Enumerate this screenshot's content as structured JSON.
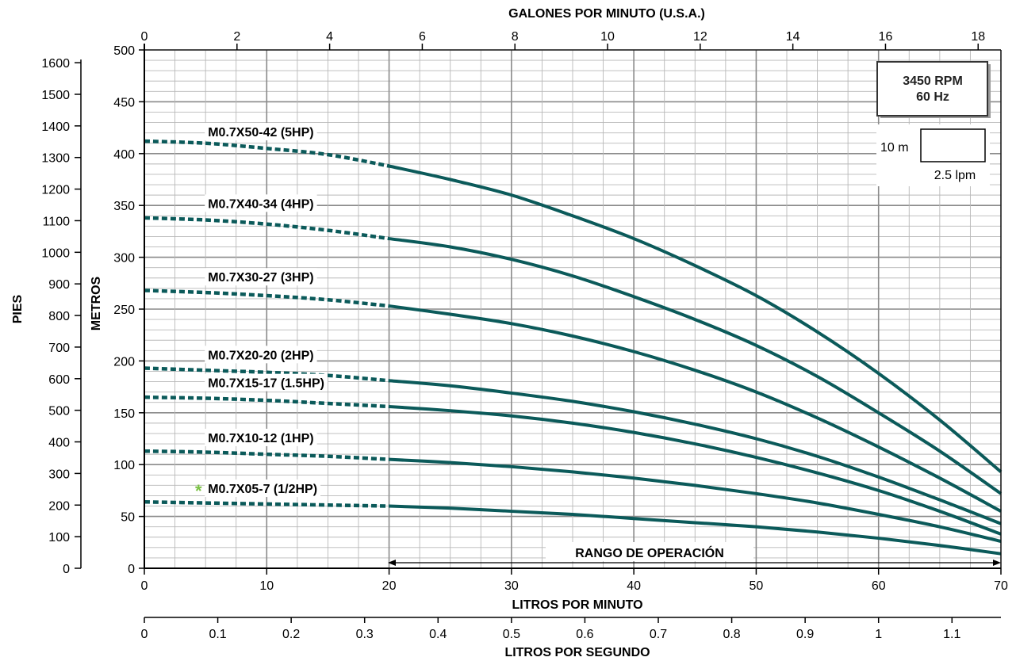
{
  "chart_data": {
    "type": "line",
    "top_axis_title": "GALONES POR MINUTO (U.S.A.)",
    "top_ticks": [
      "0",
      "2",
      "4",
      "6",
      "8",
      "10",
      "12",
      "14",
      "16",
      "18"
    ],
    "bottom_axis_title": "LITROS POR MINUTO",
    "bottom_ticks": [
      "0",
      "10",
      "20",
      "30",
      "40",
      "50",
      "60",
      "70"
    ],
    "lps_axis_title": "LITROS POR SEGUNDO",
    "lps_ticks": [
      "0",
      "0.1",
      "0.2",
      "0.3",
      "0.4",
      "0.5",
      "0.6",
      "0.7",
      "0.8",
      "0.9",
      "1",
      "1.1"
    ],
    "left_axis_title": "PIES",
    "left_ticks": [
      "0",
      "100",
      "200",
      "300",
      "400",
      "500",
      "600",
      "700",
      "800",
      "900",
      "1000",
      "1100",
      "1200",
      "1300",
      "1400",
      "1500",
      "1600"
    ],
    "inner_axis_title": "METROS",
    "inner_ticks": [
      "0",
      "50",
      "100",
      "150",
      "200",
      "250",
      "300",
      "350",
      "400",
      "450",
      "500"
    ],
    "xlim": [
      0,
      70
    ],
    "ylim": [
      0,
      500
    ],
    "operating_range_start": 20,
    "operating_range_label": "RANGO DE OPERACIÓN",
    "info_box": {
      "line1": "3450 RPM",
      "line2": "60 Hz"
    },
    "scale_box": {
      "vertical": "10 m",
      "horizontal": "2.5 lpm"
    },
    "series_color": "#0b5a5a",
    "grid": true,
    "new_model_marker": "*",
    "new_model_marker_color": "#7ac143",
    "series": [
      {
        "name": "M0.7X50-42 (5HP)",
        "x": [
          0,
          5,
          10,
          15,
          20,
          25,
          30,
          35,
          40,
          45,
          50,
          55,
          60,
          65,
          70
        ],
        "y": [
          412,
          410,
          405,
          399,
          388,
          375,
          360,
          340,
          318,
          292,
          263,
          228,
          188,
          143,
          93
        ]
      },
      {
        "name": "M0.7X40-34 (4HP)",
        "x": [
          0,
          5,
          10,
          15,
          20,
          25,
          30,
          35,
          40,
          45,
          50,
          55,
          60,
          65,
          70
        ],
        "y": [
          338,
          336,
          332,
          326,
          318,
          310,
          298,
          282,
          262,
          240,
          215,
          185,
          150,
          113,
          72
        ]
      },
      {
        "name": "M0.7X30-27 (3HP)",
        "x": [
          0,
          5,
          10,
          15,
          20,
          25,
          30,
          35,
          40,
          45,
          50,
          55,
          60,
          65,
          70
        ],
        "y": [
          268,
          266,
          263,
          259,
          253,
          245,
          236,
          224,
          209,
          191,
          170,
          145,
          117,
          87,
          55
        ]
      },
      {
        "name": "M0.7X20-20 (2HP)",
        "x": [
          0,
          5,
          10,
          15,
          20,
          25,
          30,
          35,
          40,
          45,
          50,
          55,
          60,
          65,
          70
        ],
        "y": [
          193,
          191,
          189,
          186,
          181,
          176,
          169,
          161,
          151,
          139,
          125,
          108,
          88,
          66,
          43
        ]
      },
      {
        "name": "M0.7X15-17 (1.5HP)",
        "x": [
          0,
          5,
          10,
          15,
          20,
          25,
          30,
          35,
          40,
          45,
          50,
          55,
          60,
          65,
          70
        ],
        "y": [
          165,
          164,
          162,
          159,
          156,
          152,
          147,
          140,
          131,
          120,
          107,
          92,
          75,
          55,
          33
        ]
      },
      {
        "name": "M0.7X10-12 (1HP)",
        "x": [
          0,
          5,
          10,
          15,
          20,
          25,
          30,
          35,
          40,
          45,
          50,
          55,
          60,
          65,
          70
        ],
        "y": [
          113,
          112,
          110,
          108,
          105,
          102,
          98,
          93,
          87,
          80,
          72,
          63,
          52,
          40,
          26
        ]
      },
      {
        "name": "M0.7X05-7 (1/2HP)",
        "x": [
          0,
          5,
          10,
          15,
          20,
          25,
          30,
          35,
          40,
          45,
          50,
          55,
          60,
          65,
          70
        ],
        "y": [
          64,
          63,
          62,
          61,
          60,
          58,
          55,
          52,
          48,
          44,
          40,
          35,
          29,
          22,
          14
        ]
      }
    ],
    "label_anchors": [
      {
        "x": 5.2,
        "y": 412
      },
      {
        "x": 5.2,
        "y": 343
      },
      {
        "x": 5.2,
        "y": 272
      },
      {
        "x": 5.2,
        "y": 197
      },
      {
        "x": 5.2,
        "y": 170
      },
      {
        "x": 5.2,
        "y": 117
      },
      {
        "x": 5.2,
        "y": 68
      }
    ]
  }
}
